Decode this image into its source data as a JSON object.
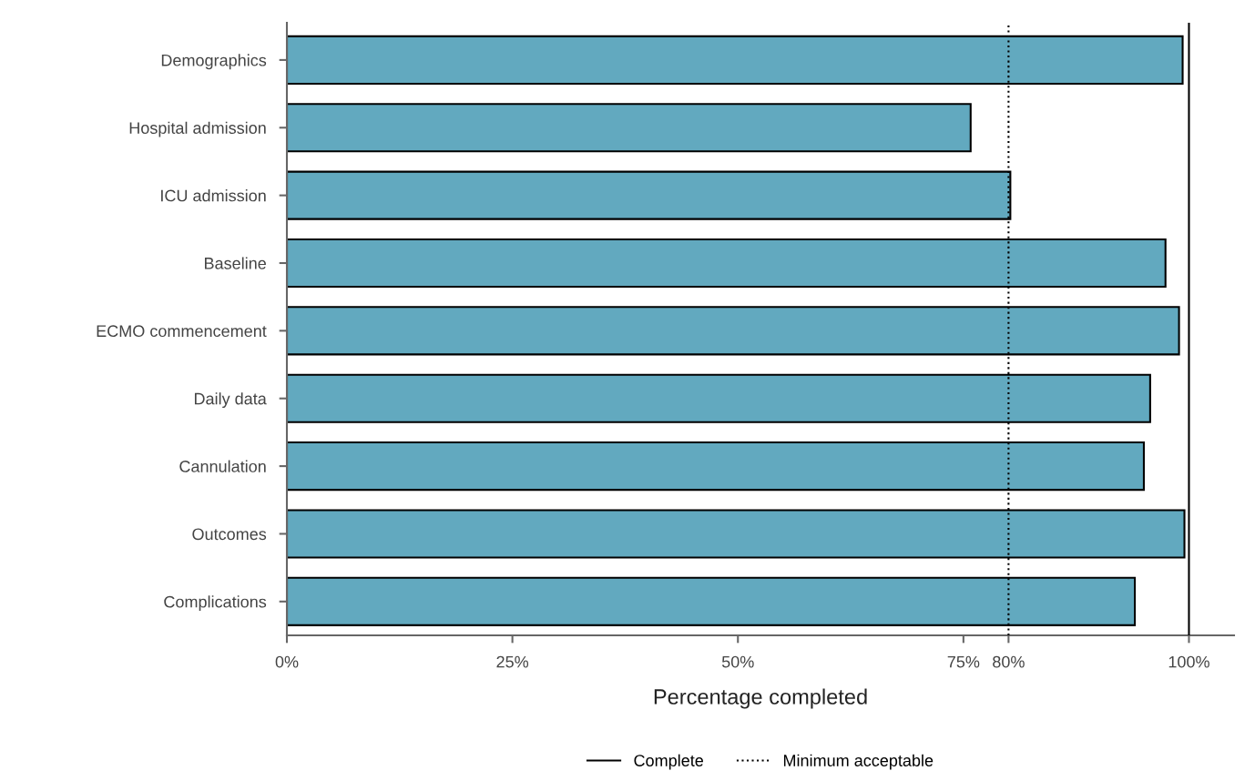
{
  "chart_data": {
    "type": "bar",
    "orientation": "horizontal",
    "xlabel": "Percentage completed",
    "categories": [
      "Demographics",
      "Hospital admission",
      "ICU admission",
      "Baseline",
      "ECMO commencement",
      "Daily data",
      "Cannulation",
      "Outcomes",
      "Complications"
    ],
    "values": [
      99.3,
      75.8,
      80.2,
      97.4,
      98.9,
      95.7,
      95.0,
      99.5,
      94.0
    ],
    "color": "#62a9bf",
    "xlim": [
      0,
      105
    ],
    "xticks": [
      {
        "value": 0,
        "label": "0%"
      },
      {
        "value": 25,
        "label": "25%"
      },
      {
        "value": 50,
        "label": "50%"
      },
      {
        "value": 75,
        "label": "75%"
      },
      {
        "value": 80,
        "label": "80%"
      },
      {
        "value": 100,
        "label": "100%"
      }
    ],
    "ref_lines": [
      {
        "axis": "x",
        "value": 100,
        "label": "Complete",
        "line_style": "solid",
        "color": "#000000"
      },
      {
        "axis": "x",
        "value": 80,
        "label": "Minimum acceptable",
        "line_style": "dotted",
        "color": "#000000"
      }
    ],
    "grid": false,
    "legend": "bottom"
  }
}
